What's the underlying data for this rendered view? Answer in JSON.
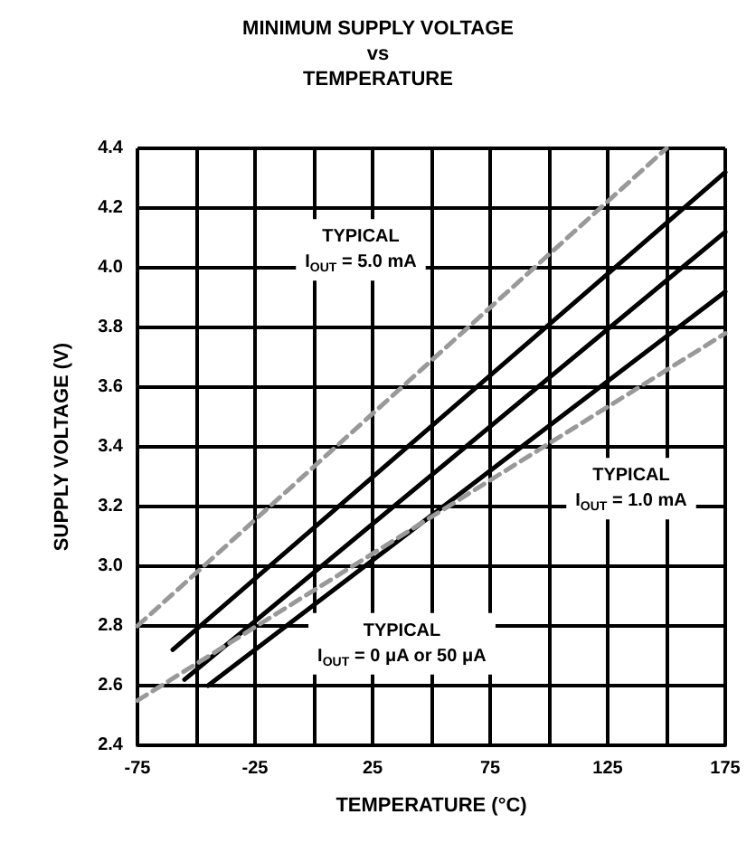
{
  "chart_data": {
    "type": "line",
    "title": "MINIMUM SUPPLY VOLTAGE\nvs\nTEMPERATURE",
    "xlabel": "TEMPERATURE (°C)",
    "ylabel": "SUPPLY VOLTAGE (V)",
    "xlim": [
      -75,
      175
    ],
    "xticks": [
      -75,
      {
        "value": -50,
        "label": null
      },
      -25,
      {
        "value": 0,
        "label": null
      },
      25,
      {
        "value": 50,
        "label": null
      },
      75,
      {
        "value": 100,
        "label": null
      },
      125,
      {
        "value": 150,
        "label": null
      },
      175
    ],
    "ylim": [
      2.4,
      4.4
    ],
    "yticks": [
      2.4,
      2.6,
      2.8,
      {
        "value": 3,
        "label": "3.0"
      },
      3.2,
      3.4,
      3.6,
      3.8,
      {
        "value": 4,
        "label": "4.0"
      },
      4.2,
      4.4
    ],
    "grid": true,
    "marker": "none",
    "series": [
      {
        "color": "#999999",
        "line_style": "dashed",
        "x": [
          -75,
          150
        ],
        "values": [
          2.8,
          4.4
        ]
      },
      {
        "color": "#000000",
        "line_style": "solid",
        "x": [
          -60,
          175
        ],
        "values": [
          2.72,
          4.32
        ]
      },
      {
        "color": "#000000",
        "line_style": "solid",
        "x": [
          -55,
          175
        ],
        "values": [
          2.62,
          4.12
        ]
      },
      {
        "color": "#000000",
        "line_style": "solid",
        "x": [
          -45,
          175
        ],
        "values": [
          2.6,
          3.92
        ]
      },
      {
        "color": "#999999",
        "line_style": "dashed",
        "x": [
          -75,
          175
        ],
        "values": [
          2.55,
          3.78
        ]
      }
    ],
    "annotations": [
      "TYPICAL\nI$_{OUT}$ = 5.0 mA",
      "TYPICAL\nI$_{OUT}$ = 1.0 mA",
      "TYPICAL\nI$_{OUT}$ = 0 μA or 50 μA"
    ]
  }
}
